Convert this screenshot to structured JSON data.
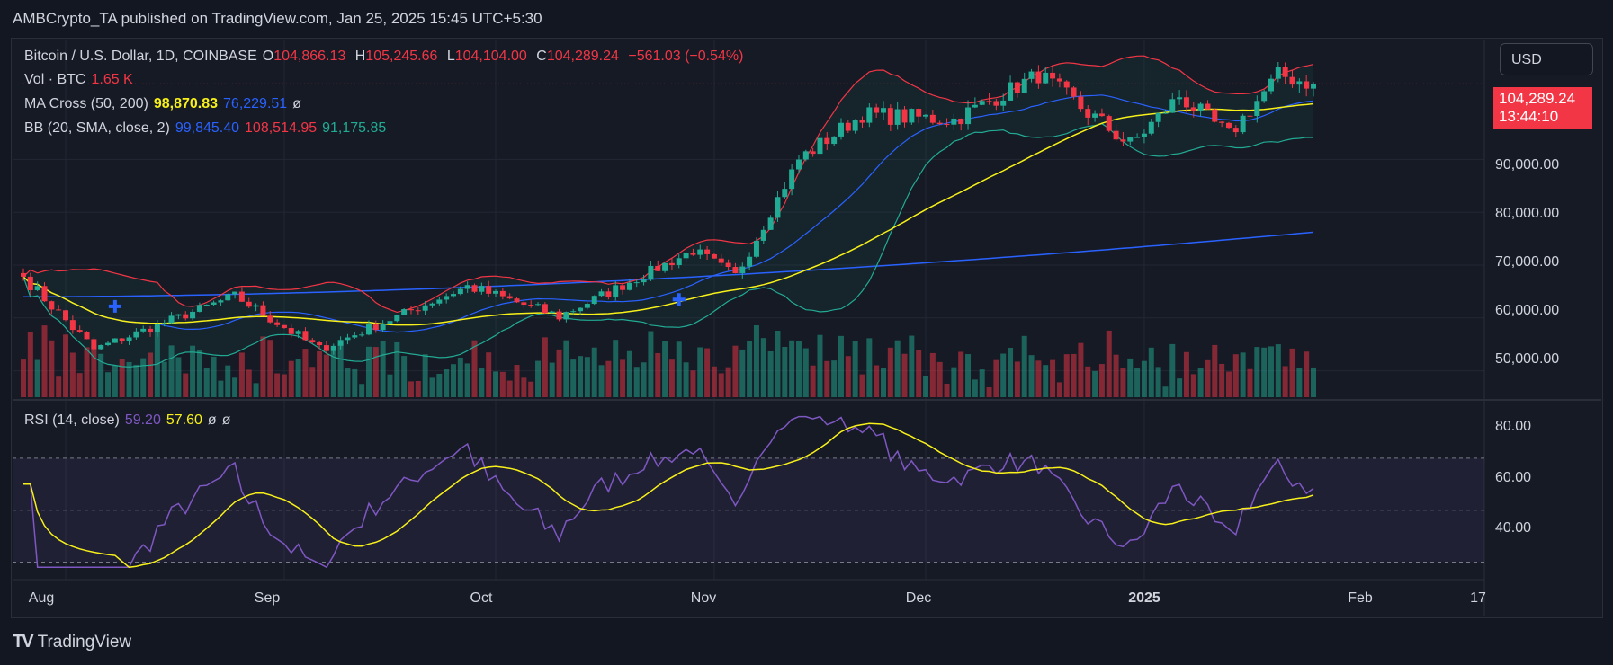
{
  "header": {
    "publisher": "AMBCrypto_TA published on TradingView.com, Jan 25, 2025 15:45 UTC+5:30"
  },
  "legend": {
    "symbol": "Bitcoin / U.S. Dollar, 1D, COINBASE",
    "o_label": "O",
    "o": "104,866.13",
    "h_label": "H",
    "h": "105,245.66",
    "l_label": "L",
    "l": "104,104.00",
    "c_label": "C",
    "c": "104,289.24",
    "change": "−561.03 (−0.54%)",
    "vol_label": "Vol · BTC",
    "vol": "1.65 K",
    "ma_label": "MA Cross (50, 200)",
    "ma50": "98,870.83",
    "ma200": "76,229.51",
    "ma_extra": "ø",
    "bb_label": "BB (20, SMA, close, 2)",
    "bb_mid": "99,845.40",
    "bb_up": "108,514.95",
    "bb_low": "91,175.85",
    "rsi_label": "RSI (14, close)",
    "rsi": "59.20",
    "rsi_ma": "57.60",
    "rsi_extra1": "ø",
    "rsi_extra2": "ø"
  },
  "currency_button": "USD",
  "last_price": {
    "price": "104,289.24",
    "countdown": "13:44:10"
  },
  "price_axis": [
    "90,000.00",
    "80,000.00",
    "70,000.00",
    "60,000.00",
    "50,000.00"
  ],
  "rsi_axis": [
    "80.00",
    "60.00",
    "40.00"
  ],
  "time_axis": [
    "Aug",
    "Sep",
    "Oct",
    "Nov",
    "Dec",
    "2025",
    "Feb",
    "17"
  ],
  "branding": "TradingView",
  "colors": {
    "up": "#22ab94",
    "down": "#f23645",
    "ma50": "#f7f019",
    "ma200": "#2962ff",
    "bb_mid": "#2962ff",
    "bb_up": "#f23645",
    "bb_low": "#22ab94",
    "rsi": "#7e57c2",
    "rsi_ma": "#f7f019"
  },
  "chart_data": {
    "type": "candlestick",
    "x_start": "2024-07-26",
    "x_end": "2025-01-25",
    "ylim": [
      45000,
      112000
    ],
    "key_points": [
      {
        "date": "2024-07-26",
        "close": 67800
      },
      {
        "date": "2024-08-05",
        "close": 54000
      },
      {
        "date": "2024-08-25",
        "close": 64200
      },
      {
        "date": "2024-09-06",
        "close": 54000
      },
      {
        "date": "2024-09-27",
        "close": 66000
      },
      {
        "date": "2024-10-10",
        "close": 60300
      },
      {
        "date": "2024-10-29",
        "close": 72700
      },
      {
        "date": "2024-11-04",
        "close": 67800
      },
      {
        "date": "2024-11-13",
        "close": 90000
      },
      {
        "date": "2024-11-22",
        "close": 98500
      },
      {
        "date": "2024-12-05",
        "close": 97500
      },
      {
        "date": "2024-12-17",
        "close": 106000
      },
      {
        "date": "2024-12-30",
        "close": 92700
      },
      {
        "date": "2025-01-06",
        "close": 102000
      },
      {
        "date": "2025-01-13",
        "close": 94500
      },
      {
        "date": "2025-01-20",
        "close": 106000
      },
      {
        "date": "2025-01-25",
        "close": 104289
      }
    ],
    "ma200_range": [
      64000,
      76229.51
    ],
    "rsi_ylim": [
      25,
      90
    ],
    "rsi_bands": [
      70,
      50,
      30
    ]
  }
}
